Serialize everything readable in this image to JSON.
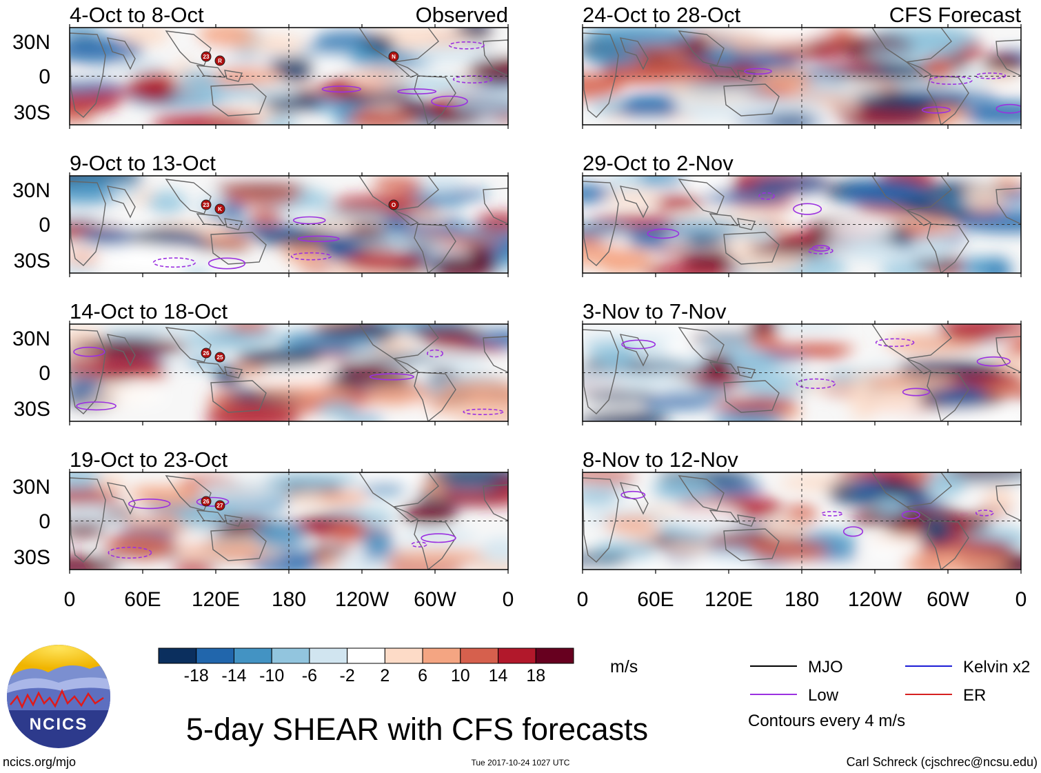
{
  "chart_data": {
    "type": "heatmap",
    "title": "5-day SHEAR with CFS forecasts",
    "units": "m/s",
    "contour_note": "Contours every 4 m/s",
    "column_labels": [
      "Observed",
      "CFS Forecast"
    ],
    "y_ticks": [
      "30N",
      "0",
      "30S"
    ],
    "x_ticks": [
      "0",
      "60E",
      "120E",
      "180",
      "120W",
      "60W",
      "0"
    ],
    "panels": [
      {
        "label": "4-Oct to 8-Oct",
        "kind": "Observed",
        "storms": [
          "23",
          "R",
          "N"
        ]
      },
      {
        "label": "9-Oct to 13-Oct",
        "kind": "Observed",
        "storms": [
          "23",
          "K",
          "O"
        ]
      },
      {
        "label": "14-Oct to 18-Oct",
        "kind": "Observed",
        "storms": [
          "26",
          "25"
        ]
      },
      {
        "label": "19-Oct to 23-Oct",
        "kind": "Observed",
        "storms": [
          "26",
          "27"
        ]
      },
      {
        "label": "24-Oct to 28-Oct",
        "kind": "CFS Forecast",
        "storms": []
      },
      {
        "label": "29-Oct to 2-Nov",
        "kind": "CFS Forecast",
        "storms": []
      },
      {
        "label": "3-Nov to 7-Nov",
        "kind": "CFS Forecast",
        "storms": []
      },
      {
        "label": "8-Nov to 12-Nov",
        "kind": "CFS Forecast",
        "storms": []
      }
    ],
    "colorbar": {
      "ticks": [
        "-18",
        "-14",
        "-10",
        "-6",
        "-2",
        "2",
        "6",
        "10",
        "14",
        "18"
      ],
      "colors": [
        "#0b2f5e",
        "#2166ac",
        "#4393c3",
        "#92c5de",
        "#d1e5f0",
        "#ffffff",
        "#fddbc7",
        "#f4a582",
        "#d6604d",
        "#b2182b",
        "#67001f"
      ]
    },
    "legend": [
      {
        "label": "MJO",
        "color": "#000000"
      },
      {
        "label": "Kelvin x2",
        "color": "#1c1cd6"
      },
      {
        "label": "Low",
        "color": "#9b30e0"
      },
      {
        "label": "ER",
        "color": "#d62020"
      }
    ]
  },
  "logo": {
    "text": "NCICS"
  },
  "footer": {
    "website": "ncics.org/mjo",
    "timestamp": "Tue 2017-10-24 1027 UTC",
    "credit": "Carl Schreck (cjschrec@ncsu.edu)"
  }
}
